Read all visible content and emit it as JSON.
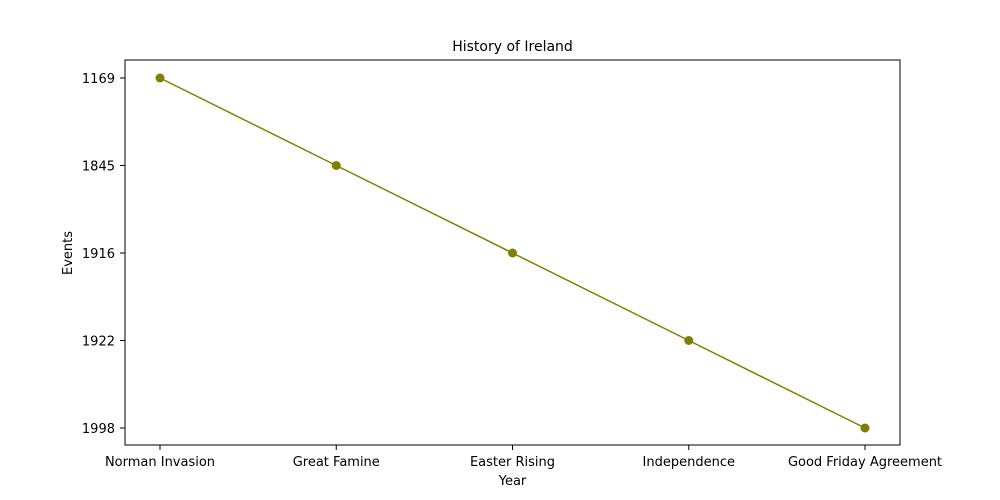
{
  "chart_data": {
    "type": "line",
    "title": "History of Ireland",
    "xlabel": "Year",
    "ylabel": "Events",
    "categories": [
      "Norman Invasion",
      "Great Famine",
      "Easter Rising",
      "Independence",
      "Good Friday Agreement"
    ],
    "y_tick_labels": [
      "1169",
      "1845",
      "1916",
      "1922",
      "1998"
    ],
    "series": [
      {
        "color": "#808000",
        "marker": "circle",
        "points": [
          {
            "x": "Norman Invasion",
            "y": "1169"
          },
          {
            "x": "Great Famine",
            "y": "1845"
          },
          {
            "x": "Easter Rising",
            "y": "1916"
          },
          {
            "x": "Independence",
            "y": "1922"
          },
          {
            "x": "Good Friday Agreement",
            "y": "1998"
          }
        ]
      }
    ],
    "y_axis_order": "top-to-bottom",
    "grid": false,
    "legend": "none"
  }
}
